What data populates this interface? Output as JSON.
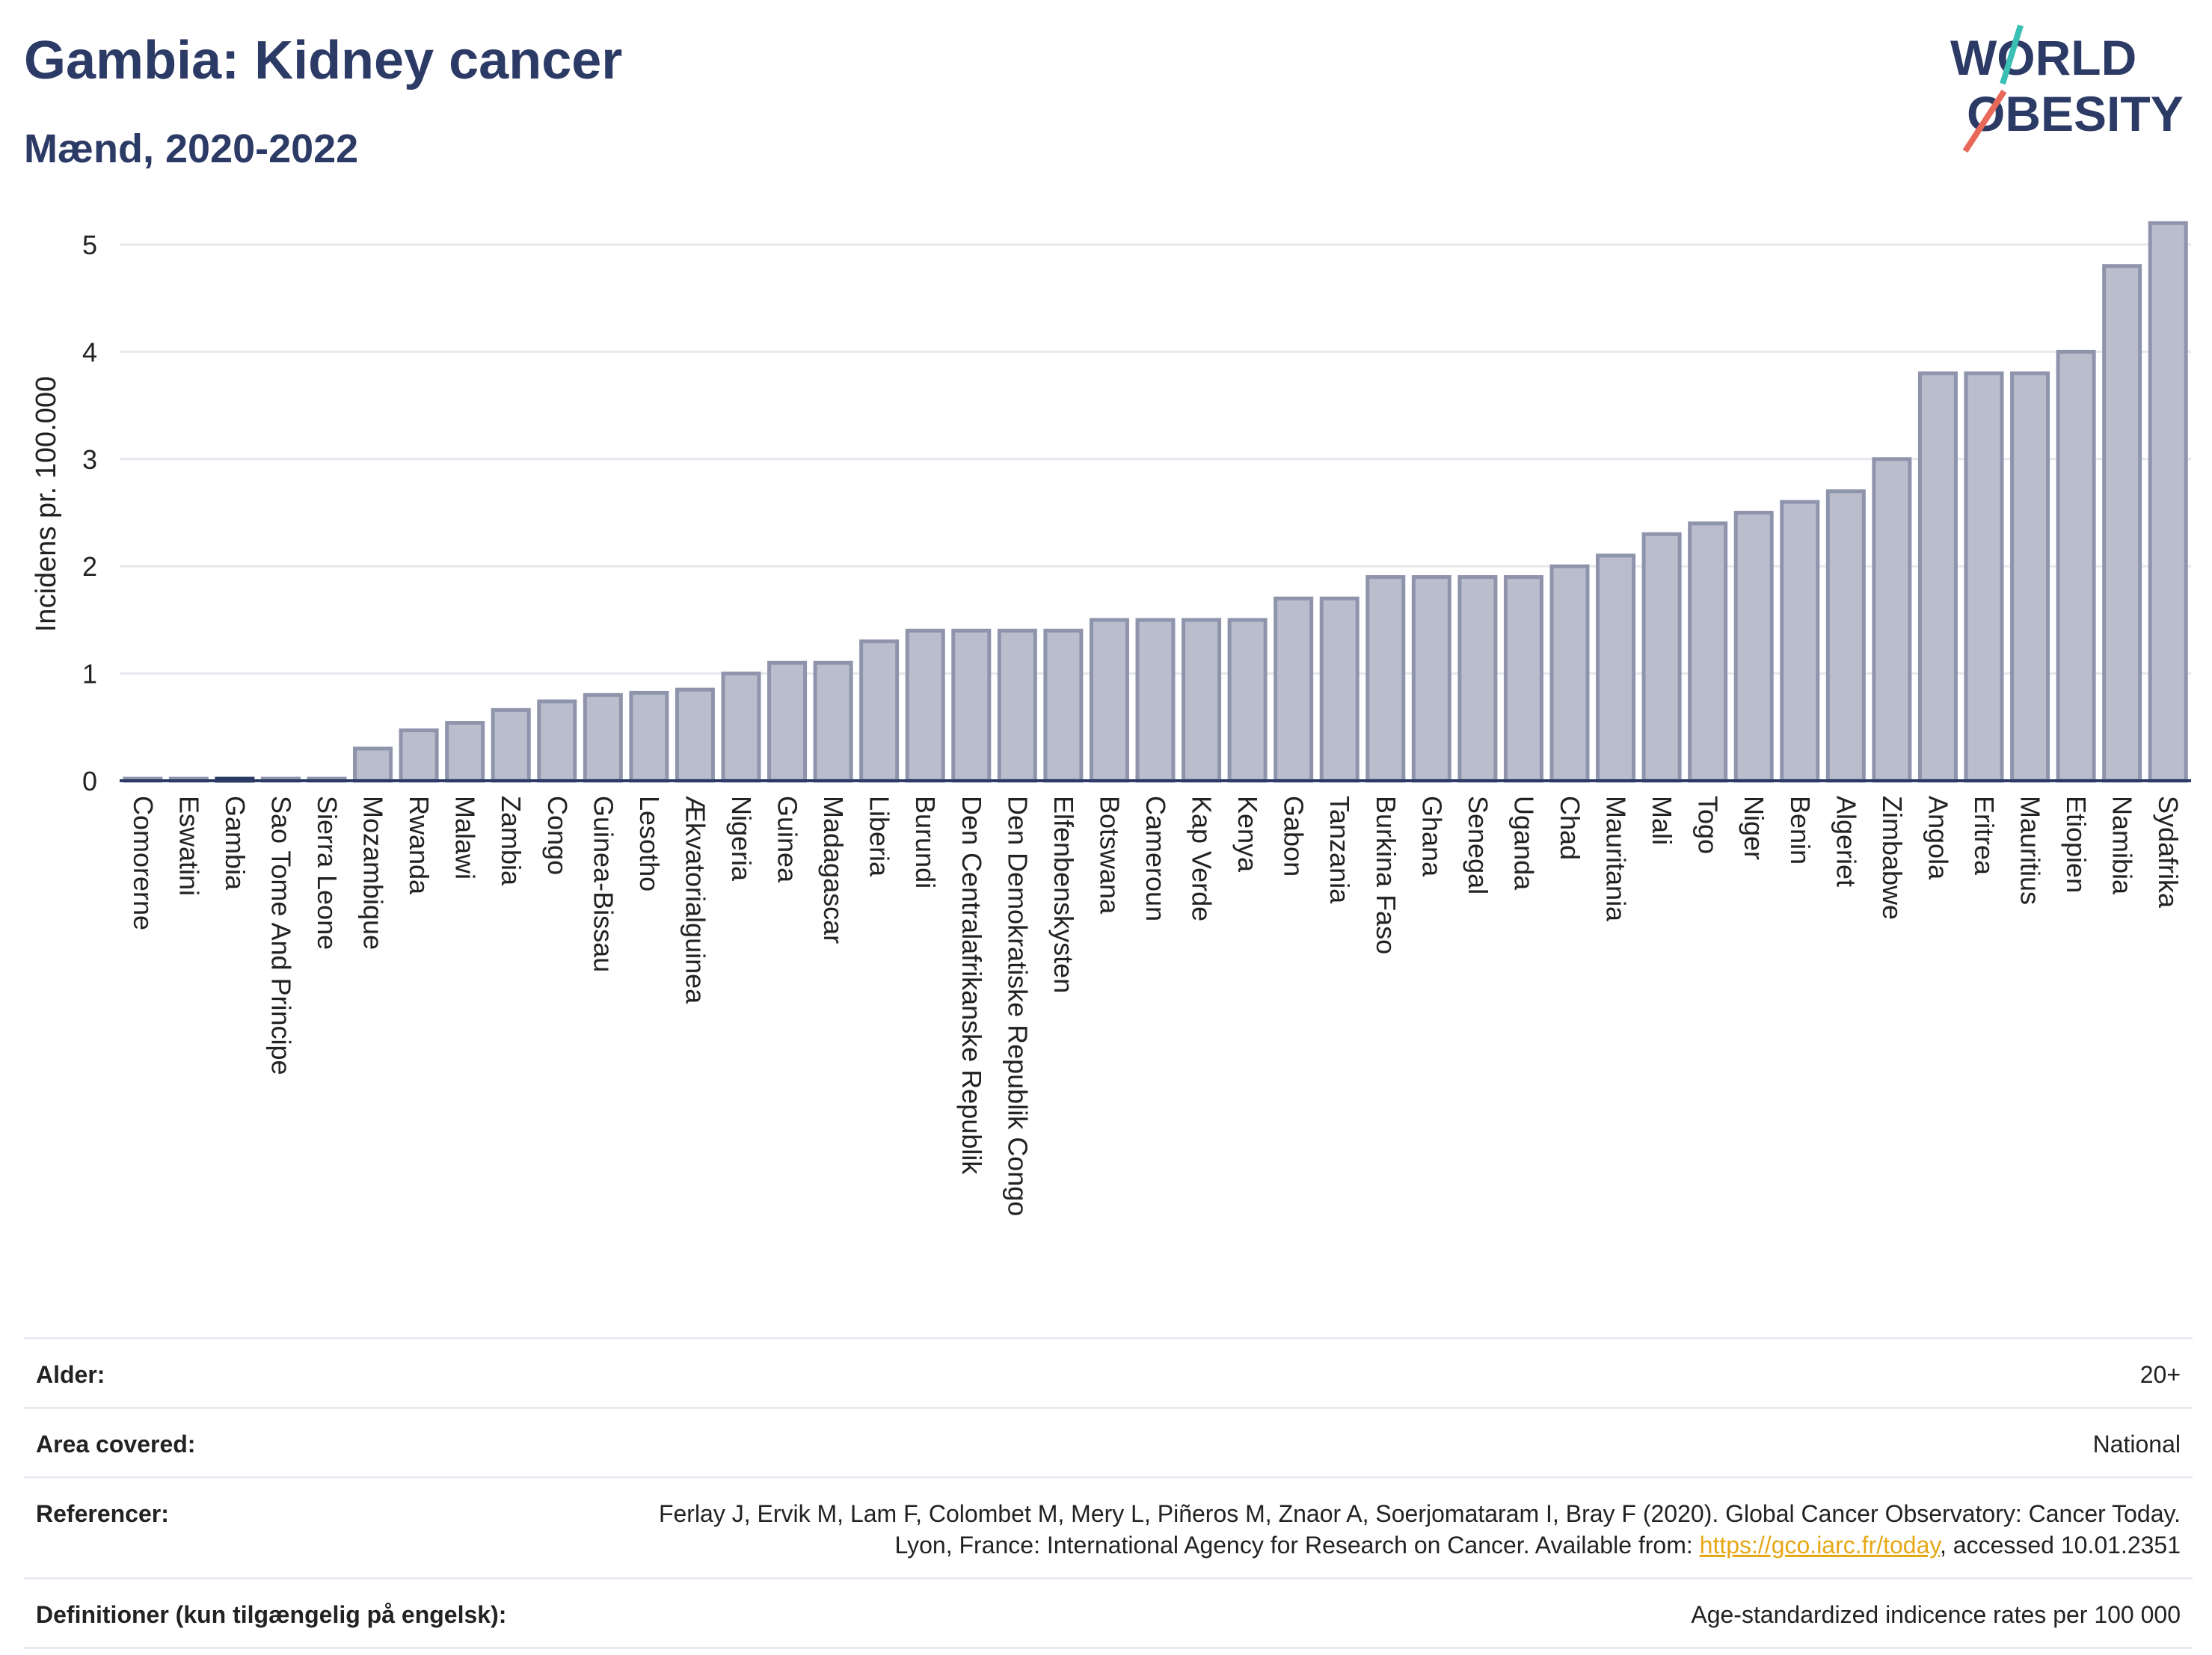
{
  "header": {
    "title": "Gambia: Kidney cancer",
    "subtitle": "Mænd, 2020-2022"
  },
  "logo": {
    "line1": "WORLD",
    "line2": "OBESITY",
    "accent": "#e8685a",
    "accent2": "#3bbfb5"
  },
  "colors": {
    "bar": "#b9bdcc",
    "bar_stroke": "#8f94ad",
    "highlight": "#2c3a66",
    "grid": "#e6e8ee"
  },
  "chart_data": {
    "type": "bar",
    "title": "Gambia: Kidney cancer",
    "ylabel": "Incidens pr. 100.000",
    "ylim": [
      0,
      5.3
    ],
    "yticks": [
      0,
      1,
      2,
      3,
      4,
      5
    ],
    "highlight": "Gambia",
    "categories": [
      "Comorerne",
      "Eswatini",
      "Gambia",
      "Sao Tome And Principe",
      "Sierra Leone",
      "Mozambique",
      "Rwanda",
      "Malawi",
      "Zambia",
      "Congo",
      "Guinea-Bissau",
      "Lesotho",
      "Ækvatorialguinea",
      "Nigeria",
      "Guinea",
      "Madagascar",
      "Liberia",
      "Burundi",
      "Den Centralafrikanske Republik",
      "Den Demokratiske Republik Congo",
      "Elfenbenskysten",
      "Botswana",
      "Cameroun",
      "Kap Verde",
      "Kenya",
      "Gabon",
      "Tanzania",
      "Burkina Faso",
      "Ghana",
      "Senegal",
      "Uganda",
      "Chad",
      "Mauritania",
      "Mali",
      "Togo",
      "Niger",
      "Benin",
      "Algeriet",
      "Zimbabwe",
      "Angola",
      "Eritrea",
      "Mauritius",
      "Etiopien",
      "Namibia",
      "Sydafrika"
    ],
    "values": [
      0.02,
      0.02,
      0.02,
      0.02,
      0.02,
      0.3,
      0.47,
      0.54,
      0.66,
      0.74,
      0.8,
      0.82,
      0.85,
      1.0,
      1.1,
      1.1,
      1.3,
      1.4,
      1.4,
      1.4,
      1.4,
      1.5,
      1.5,
      1.5,
      1.5,
      1.7,
      1.7,
      1.9,
      1.9,
      1.9,
      1.9,
      2.0,
      2.1,
      2.3,
      2.4,
      2.5,
      2.6,
      2.7,
      3.0,
      3.8,
      3.8,
      3.8,
      4.0,
      4.8,
      5.2
    ]
  },
  "meta": [
    {
      "label": "Alder:",
      "value": "20+"
    },
    {
      "label": "Area covered:",
      "value": "National"
    },
    {
      "label": "Referencer:",
      "value_pre": "Ferlay J, Ervik M, Lam F, Colombet M, Mery L, Piñeros M, Znaor A, Soerjomataram I, Bray F (2020). Global Cancer Observatory: Cancer Today. Lyon, France: International Agency for Research on Cancer. Available from: ",
      "link": "https://gco.iarc.fr/today",
      "value_post": ", accessed 10.01.2351"
    },
    {
      "label": "Definitioner (kun tilgængelig på engelsk):",
      "value": "Age-standardized indicence rates per 100 000"
    }
  ]
}
